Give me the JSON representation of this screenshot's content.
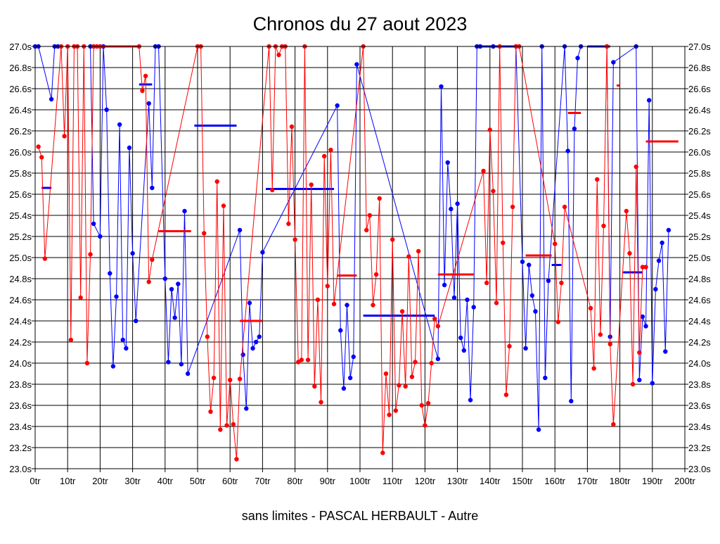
{
  "chart_data": {
    "type": "line",
    "title": "Chronos du 27 aout 2023",
    "subtitle": "sans limites - PASCAL HERBAULT - Autre",
    "xlim": [
      0,
      200
    ],
    "ylim": [
      23.0,
      27.0
    ],
    "x_ticks": [
      "0tr",
      "10tr",
      "20tr",
      "30tr",
      "40tr",
      "50tr",
      "60tr",
      "70tr",
      "80tr",
      "90tr",
      "100tr",
      "110tr",
      "120tr",
      "130tr",
      "140tr",
      "150tr",
      "160tr",
      "170tr",
      "180tr",
      "190tr",
      "200tr"
    ],
    "y_ticks": [
      "23.0s",
      "23.2s",
      "23.4s",
      "23.6s",
      "23.8s",
      "24.0s",
      "24.2s",
      "24.4s",
      "24.6s",
      "24.8s",
      "25.0s",
      "25.2s",
      "25.4s",
      "25.6s",
      "25.8s",
      "26.0s",
      "26.2s",
      "26.4s",
      "26.6s",
      "26.8s",
      "27.0s"
    ],
    "grid": true,
    "series": [
      {
        "color": "#0000ff",
        "points": [
          [
            0,
            27.0
          ],
          [
            1,
            27.0
          ],
          [
            5,
            26.5
          ],
          [
            6,
            27.0
          ],
          [
            7,
            27.0
          ],
          [
            17,
            27.0
          ],
          [
            18,
            25.32
          ],
          [
            20,
            25.2
          ],
          [
            21,
            27.0
          ],
          [
            22,
            26.4
          ],
          [
            23,
            24.85
          ],
          [
            24,
            23.97
          ],
          [
            25,
            24.63
          ],
          [
            26,
            26.26
          ],
          [
            27,
            24.22
          ],
          [
            28,
            24.14
          ],
          [
            29,
            26.04
          ],
          [
            30,
            25.04
          ],
          [
            31,
            24.4
          ],
          [
            35,
            26.46
          ],
          [
            36,
            25.66
          ],
          [
            37,
            27.0
          ],
          [
            38,
            27.0
          ],
          [
            40,
            24.8
          ],
          [
            41,
            24.01
          ],
          [
            42,
            24.7
          ],
          [
            43,
            24.43
          ],
          [
            44,
            24.75
          ],
          [
            45,
            23.99
          ],
          [
            46,
            25.44
          ],
          [
            47,
            23.9
          ],
          [
            63,
            25.26
          ],
          [
            64,
            24.08
          ],
          [
            65,
            23.57
          ],
          [
            66,
            24.57
          ],
          [
            67,
            24.14
          ],
          [
            68,
            24.2
          ],
          [
            69,
            24.25
          ],
          [
            70,
            25.05
          ],
          [
            93,
            26.44
          ],
          [
            94,
            24.31
          ],
          [
            95,
            23.76
          ],
          [
            96,
            24.55
          ],
          [
            97,
            23.86
          ],
          [
            98,
            24.06
          ],
          [
            99,
            26.83
          ],
          [
            124,
            24.04
          ],
          [
            125,
            26.62
          ],
          [
            126,
            24.74
          ],
          [
            127,
            25.9
          ],
          [
            128,
            25.46
          ],
          [
            129,
            24.62
          ],
          [
            130,
            25.51
          ],
          [
            131,
            24.24
          ],
          [
            132,
            24.12
          ],
          [
            133,
            24.6
          ],
          [
            134,
            23.65
          ],
          [
            135,
            24.53
          ],
          [
            136,
            27.0
          ],
          [
            137,
            27.0
          ],
          [
            141,
            27.0
          ],
          [
            148,
            27.0
          ],
          [
            150,
            24.96
          ],
          [
            151,
            24.14
          ],
          [
            152,
            24.93
          ],
          [
            153,
            24.64
          ],
          [
            154,
            24.49
          ],
          [
            155,
            23.37
          ],
          [
            156,
            27.0
          ],
          [
            157,
            23.86
          ],
          [
            158,
            24.78
          ],
          [
            163,
            27.0
          ],
          [
            164,
            26.01
          ],
          [
            165,
            23.64
          ],
          [
            166,
            26.22
          ],
          [
            167,
            26.89
          ],
          [
            168,
            27.0
          ],
          [
            176,
            27.0
          ],
          [
            177,
            24.25
          ],
          [
            178,
            26.85
          ],
          [
            185,
            27.0
          ],
          [
            186,
            23.84
          ],
          [
            187,
            24.44
          ],
          [
            188,
            24.35
          ],
          [
            189,
            26.49
          ],
          [
            190,
            23.81
          ],
          [
            191,
            24.7
          ],
          [
            192,
            24.97
          ],
          [
            193,
            25.14
          ],
          [
            194,
            24.11
          ],
          [
            195,
            25.26
          ]
        ],
        "avg_segments": [
          [
            2,
            5,
            25.66
          ],
          [
            32,
            36,
            26.64
          ],
          [
            49,
            62,
            26.25
          ],
          [
            71,
            92,
            25.65
          ],
          [
            101,
            123,
            24.45
          ],
          [
            137,
            149,
            27.0
          ],
          [
            159,
            162,
            24.93
          ],
          [
            170,
            177,
            27.0
          ],
          [
            181,
            187,
            24.86
          ]
        ]
      },
      {
        "color": "#ff0000",
        "points": [
          [
            1,
            26.05
          ],
          [
            2,
            25.95
          ],
          [
            3,
            24.99
          ],
          [
            8,
            27.0
          ],
          [
            9,
            26.15
          ],
          [
            10,
            27.0
          ],
          [
            11,
            24.22
          ],
          [
            12,
            27.0
          ],
          [
            13,
            27.0
          ],
          [
            14,
            24.62
          ],
          [
            15,
            27.0
          ],
          [
            16,
            24.0
          ],
          [
            17,
            25.03
          ],
          [
            18,
            27.0
          ],
          [
            19,
            27.0
          ],
          [
            20,
            27.0
          ],
          [
            32,
            27.0
          ],
          [
            33,
            26.58
          ],
          [
            34,
            26.72
          ],
          [
            35,
            24.77
          ],
          [
            36,
            24.98
          ],
          [
            50,
            27.0
          ],
          [
            51,
            27.0
          ],
          [
            52,
            25.23
          ],
          [
            53,
            24.25
          ],
          [
            54,
            23.54
          ],
          [
            55,
            23.86
          ],
          [
            56,
            25.72
          ],
          [
            57,
            23.37
          ],
          [
            58,
            25.49
          ],
          [
            59,
            23.41
          ],
          [
            60,
            23.84
          ],
          [
            61,
            23.42
          ],
          [
            62,
            23.09
          ],
          [
            63,
            23.85
          ],
          [
            72,
            27.0
          ],
          [
            73,
            25.64
          ],
          [
            74,
            27.0
          ],
          [
            75,
            26.92
          ],
          [
            76,
            27.0
          ],
          [
            77,
            27.0
          ],
          [
            78,
            25.32
          ],
          [
            79,
            26.24
          ],
          [
            80,
            25.17
          ],
          [
            81,
            24.01
          ],
          [
            82,
            24.03
          ],
          [
            83,
            27.0
          ],
          [
            84,
            24.03
          ],
          [
            85,
            25.69
          ],
          [
            86,
            23.78
          ],
          [
            87,
            24.6
          ],
          [
            88,
            23.63
          ],
          [
            89,
            25.96
          ],
          [
            90,
            24.73
          ],
          [
            91,
            26.02
          ],
          [
            92,
            24.56
          ],
          [
            101,
            27.0
          ],
          [
            102,
            25.26
          ],
          [
            103,
            25.4
          ],
          [
            104,
            24.55
          ],
          [
            105,
            24.84
          ],
          [
            106,
            25.56
          ],
          [
            107,
            23.15
          ],
          [
            108,
            23.9
          ],
          [
            109,
            23.51
          ],
          [
            110,
            25.17
          ],
          [
            111,
            23.55
          ],
          [
            112,
            23.79
          ],
          [
            113,
            24.49
          ],
          [
            114,
            23.78
          ],
          [
            115,
            25.01
          ],
          [
            116,
            23.87
          ],
          [
            117,
            24.01
          ],
          [
            118,
            25.06
          ],
          [
            119,
            23.6
          ],
          [
            120,
            23.41
          ],
          [
            121,
            23.62
          ],
          [
            122,
            24.0
          ],
          [
            123,
            24.42
          ],
          [
            124,
            24.35
          ],
          [
            138,
            25.82
          ],
          [
            139,
            24.76
          ],
          [
            140,
            26.21
          ],
          [
            141,
            25.63
          ],
          [
            142,
            24.57
          ],
          [
            143,
            27.0
          ],
          [
            144,
            25.14
          ],
          [
            145,
            23.7
          ],
          [
            146,
            24.16
          ],
          [
            147,
            25.48
          ],
          [
            148,
            27.0
          ],
          [
            149,
            27.0
          ],
          [
            160,
            25.13
          ],
          [
            161,
            24.39
          ],
          [
            162,
            24.76
          ],
          [
            163,
            25.48
          ],
          [
            171,
            24.52
          ],
          [
            172,
            23.95
          ],
          [
            173,
            25.74
          ],
          [
            174,
            24.27
          ],
          [
            175,
            25.3
          ],
          [
            176,
            27.0
          ],
          [
            177,
            24.18
          ],
          [
            178,
            23.42
          ],
          [
            182,
            25.44
          ],
          [
            183,
            25.04
          ],
          [
            184,
            23.8
          ],
          [
            185,
            25.86
          ],
          [
            186,
            24.1
          ],
          [
            187,
            24.91
          ],
          [
            188,
            24.91
          ]
        ],
        "avg_segments": [
          [
            20,
            32,
            27.0
          ],
          [
            38,
            48,
            25.25
          ],
          [
            63,
            70,
            24.4
          ],
          [
            93,
            99,
            24.83
          ],
          [
            124,
            135,
            24.84
          ],
          [
            151,
            159,
            25.02
          ],
          [
            164,
            168,
            26.37
          ],
          [
            179,
            180,
            26.63
          ],
          [
            188,
            198,
            26.1
          ]
        ]
      }
    ]
  }
}
